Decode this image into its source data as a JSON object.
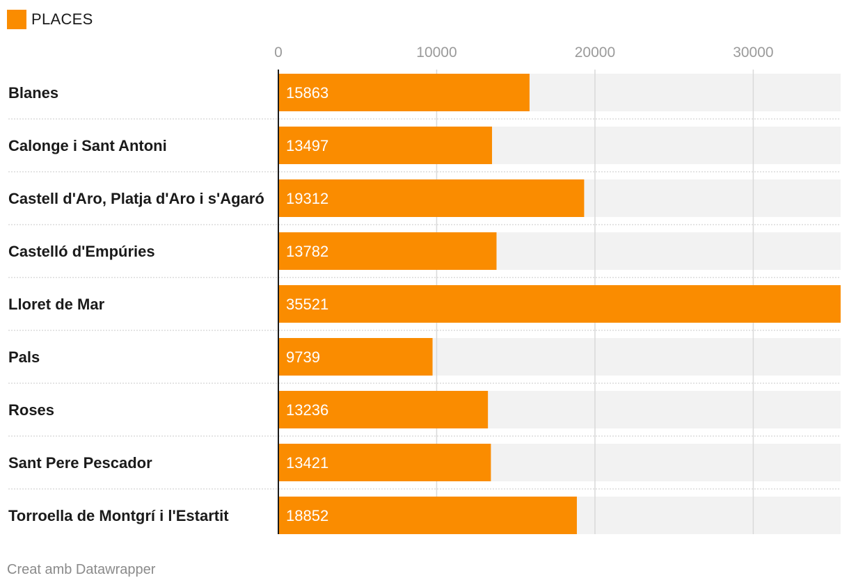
{
  "legend": {
    "label": "PLACES",
    "color": "#fa8c00"
  },
  "footer": {
    "text": "Creat amb Datawrapper"
  },
  "chart_data": {
    "type": "bar",
    "orientation": "horizontal",
    "categories": [
      "Blanes",
      "Calonge i Sant Antoni",
      "Castell d'Aro, Platja d'Aro i s'Agaró",
      "Castelló d'Empúries",
      "Lloret de Mar",
      "Pals",
      "Roses",
      "Sant Pere Pescador",
      "Torroella de Montgrí i l'Estartit"
    ],
    "series": [
      {
        "name": "PLACES",
        "values": [
          15863,
          13497,
          19312,
          13782,
          35521,
          9739,
          13236,
          13421,
          18852
        ]
      }
    ],
    "value_labels": [
      "15863",
      "13497",
      "19312",
      "13782",
      "35521",
      "9739",
      "13236",
      "13421",
      "18852"
    ],
    "x_ticks": [
      0,
      10000,
      20000,
      30000
    ],
    "x_tick_labels": [
      "0",
      "10000",
      "20000",
      "30000"
    ],
    "xlim": [
      0,
      35521
    ],
    "grid": true,
    "legend_position": "top-left",
    "colors": {
      "bar": "#fa8c00",
      "track": "#f2f2f2",
      "grid": "#d9d9d9",
      "axis": "#1a1a1a"
    }
  }
}
